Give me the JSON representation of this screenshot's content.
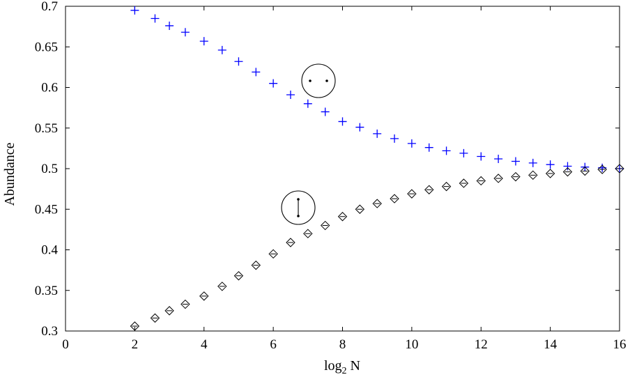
{
  "chart_data": {
    "type": "scatter",
    "xlabel": {
      "base": "log",
      "subscript": "2",
      "rest": " N"
    },
    "ylabel": "Abundance",
    "xlim": [
      0,
      16
    ],
    "ylim": [
      0.3,
      0.7
    ],
    "x_ticks": [
      "0",
      "2",
      "4",
      "6",
      "8",
      "10",
      "12",
      "14",
      "16"
    ],
    "y_ticks": [
      "0.3",
      "0.35",
      "0.4",
      "0.45",
      "0.5",
      "0.55",
      "0.6",
      "0.65",
      "0.7"
    ],
    "grid": false,
    "series": [
      {
        "marker": "plus",
        "color": "#0000ff",
        "icon": "two-separated-dots-in-circle-icon",
        "x": [
          2,
          2.585,
          3,
          3.459,
          4,
          4.524,
          5,
          5.5,
          6,
          6.5,
          7,
          7.5,
          8,
          8.5,
          9,
          9.5,
          10,
          10.5,
          11,
          11.5,
          12,
          12.5,
          13,
          13.5,
          14,
          14.5,
          15,
          15.5,
          16
        ],
        "y": [
          0.695,
          0.685,
          0.676,
          0.668,
          0.657,
          0.646,
          0.632,
          0.619,
          0.605,
          0.591,
          0.58,
          0.57,
          0.558,
          0.551,
          0.543,
          0.537,
          0.531,
          0.526,
          0.522,
          0.519,
          0.515,
          0.512,
          0.509,
          0.507,
          0.505,
          0.503,
          0.502,
          0.501,
          0.5
        ]
      },
      {
        "marker": "diamond",
        "color": "#000000",
        "icon": "vertical-dumbbell-in-circle-icon",
        "x": [
          2,
          2.585,
          3,
          3.459,
          4,
          4.524,
          5,
          5.5,
          6,
          6.5,
          7,
          7.5,
          8,
          8.5,
          9,
          9.5,
          10,
          10.5,
          11,
          11.5,
          12,
          12.5,
          13,
          13.5,
          14,
          14.5,
          15,
          15.5,
          16
        ],
        "y": [
          0.306,
          0.316,
          0.325,
          0.333,
          0.343,
          0.355,
          0.368,
          0.381,
          0.395,
          0.409,
          0.42,
          0.43,
          0.441,
          0.45,
          0.457,
          0.463,
          0.469,
          0.474,
          0.478,
          0.482,
          0.485,
          0.488,
          0.49,
          0.492,
          0.494,
          0.496,
          0.497,
          0.499,
          0.5
        ]
      }
    ]
  }
}
